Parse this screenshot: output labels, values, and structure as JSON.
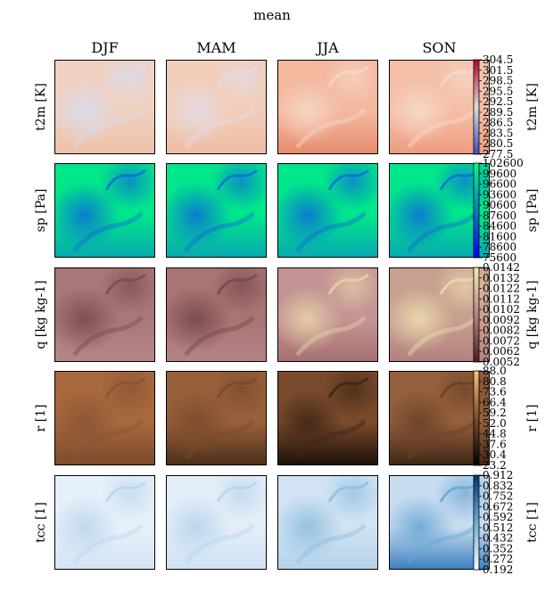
{
  "title": "mean",
  "columns": [
    "DJF",
    "MAM",
    "JJA",
    "SON"
  ],
  "chart_data": {
    "type": "heatmap",
    "title": "mean",
    "columns": [
      "DJF",
      "MAM",
      "JJA",
      "SON"
    ],
    "rows": [
      {
        "label": "t2m [K]",
        "cbar_label": "t2m [K]",
        "colormap": "coolwarm",
        "cmap_colors": [
          "#3b4cc0",
          "#dddcdc",
          "#b40426"
        ],
        "range": [
          277.5,
          304.5
        ],
        "ticks": [
          "304.5",
          "301.5",
          "298.5",
          "295.5",
          "292.5",
          "289.5",
          "286.5",
          "283.5",
          "280.5",
          "277.5"
        ],
        "panel_styles": [
          {
            "base": "#f0d0c0",
            "accent": "#d8dcef",
            "hot": "#eec0a8"
          },
          {
            "base": "#f2cdb9",
            "accent": "#e2dce6",
            "hot": "#efbda5"
          },
          {
            "base": "#f4b89f",
            "accent": "#f6d7c8",
            "hot": "#e68c6e"
          },
          {
            "base": "#f5bea6",
            "accent": "#f6d9cb",
            "hot": "#ec9c7e"
          }
        ]
      },
      {
        "label": "sp [Pa]",
        "cbar_label": "sp [Pa]",
        "colormap": "winter",
        "cmap_colors": [
          "#0000ff",
          "#0080c0",
          "#00ff80"
        ],
        "range": [
          75600,
          102600
        ],
        "ticks": [
          "102600",
          "99600",
          "96600",
          "93600",
          "90600",
          "87600",
          "84600",
          "81600",
          "78600",
          "75600"
        ],
        "panel_styles": [
          {
            "base": "#00e68a",
            "accent": "#0e6fd8",
            "hot": "#08a8b0"
          },
          {
            "base": "#00e68a",
            "accent": "#0e6fd8",
            "hot": "#08a8b0"
          },
          {
            "base": "#00e68a",
            "accent": "#0e6fd8",
            "hot": "#08a8b0"
          },
          {
            "base": "#00e68a",
            "accent": "#0e6fd8",
            "hot": "#08a8b0"
          }
        ]
      },
      {
        "label": "q [kg kg-1]",
        "cbar_label": "q [kg kg-1]",
        "colormap": "pink",
        "cmap_colors": [
          "#4a2020",
          "#b88282",
          "#f2eab8"
        ],
        "range": [
          0.0052,
          0.0142
        ],
        "ticks": [
          "0.0142",
          "0.0132",
          "0.0122",
          "0.0112",
          "0.0102",
          "0.0092",
          "0.0082",
          "0.0072",
          "0.0062",
          "0.0052"
        ],
        "panel_styles": [
          {
            "base": "#a87878",
            "accent": "#7a4c4c",
            "hot": "#b48888"
          },
          {
            "base": "#a87474",
            "accent": "#784848",
            "hot": "#b48484"
          },
          {
            "base": "#c49494",
            "accent": "#e6d2a8",
            "hot": "#a87070"
          },
          {
            "base": "#c8a090",
            "accent": "#ecdcae",
            "hot": "#b48080"
          }
        ]
      },
      {
        "label": "r [1]",
        "cbar_label": "r [1]",
        "colormap": "copper",
        "cmap_colors": [
          "#000000",
          "#7a4c30",
          "#ffc27e"
        ],
        "range": [
          23.2,
          88.0
        ],
        "ticks": [
          "88.0",
          "80.8",
          "73.6",
          "66.4",
          "59.2",
          "52.0",
          "44.8",
          "37.6",
          "30.4",
          "23.2"
        ],
        "panel_styles": [
          {
            "base": "#a8683e",
            "accent": "#8a5432",
            "hot": "#7c4a2c"
          },
          {
            "base": "#98603a",
            "accent": "#7a4a2c",
            "hot": "#4c2e1c"
          },
          {
            "base": "#7a4a2c",
            "accent": "#3e2616",
            "hot": "#1a0f08"
          },
          {
            "base": "#94603c",
            "accent": "#6a4028",
            "hot": "#3e2616"
          }
        ]
      },
      {
        "label": "tcc [1]",
        "cbar_label": "tcc [1]",
        "colormap": "Blues",
        "cmap_colors": [
          "#f7fbff",
          "#6baed6",
          "#08306b"
        ],
        "range": [
          0.192,
          0.912
        ],
        "ticks": [
          "0.912",
          "0.832",
          "0.752",
          "0.672",
          "0.592",
          "0.512",
          "0.432",
          "0.352",
          "0.272",
          "0.192"
        ],
        "panel_styles": [
          {
            "base": "#e6f0fa",
            "accent": "#bcd6ec",
            "hot": "#d4e4f4"
          },
          {
            "base": "#e4eef9",
            "accent": "#b8d4ea",
            "hot": "#d0e2f2"
          },
          {
            "base": "#d2e3f3",
            "accent": "#8ebede",
            "hot": "#b4d2ea"
          },
          {
            "base": "#c8dcf0",
            "accent": "#6aa6d4",
            "hot": "#3a7ebe"
          }
        ]
      }
    ]
  }
}
